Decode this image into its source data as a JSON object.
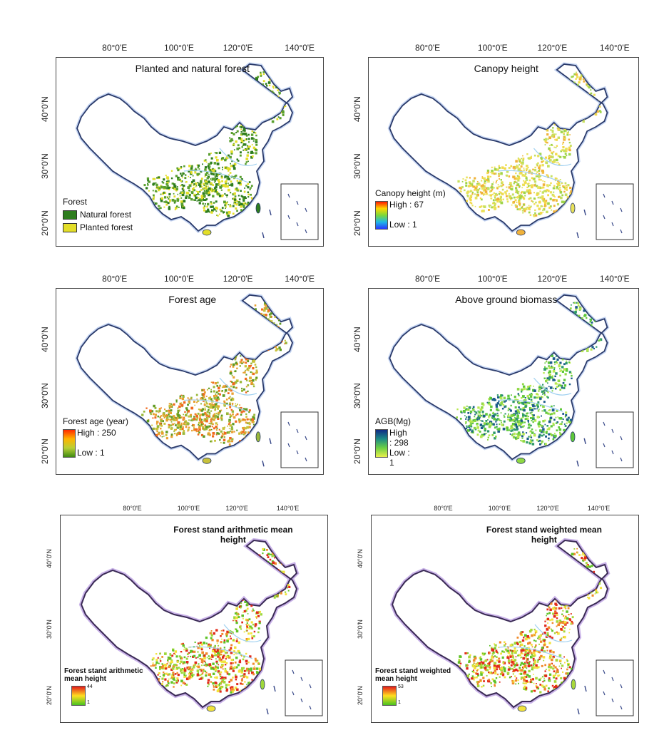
{
  "axes": {
    "lon_ticks": [
      "80°0'E",
      "100°0'E",
      "120°0'E",
      "140°0'E"
    ],
    "lat_ticks": [
      "40°0'N",
      "30°0'N",
      "20°0'N"
    ]
  },
  "panels": [
    {
      "title": "Planted and natural forest",
      "legend": {
        "heading": "Forest",
        "items": [
          {
            "label": "Natural forest",
            "color": "#2e7d1e"
          },
          {
            "label": "Planted forest",
            "color": "#e3de28"
          }
        ]
      }
    },
    {
      "title": "Canopy height",
      "legend": {
        "heading": "Canopy height (m)",
        "high": "High : 67",
        "low": "Low : 1",
        "colors": [
          "#ff1a00",
          "#ffd800",
          "#7bd83a",
          "#1fb8e6",
          "#2838ff"
        ]
      }
    },
    {
      "title": "Forest age",
      "legend": {
        "heading": "Forest age (year)",
        "high": "High : 250",
        "low": "Low : 1",
        "colors": [
          "#ff2a00",
          "#ffb400",
          "#b9d036",
          "#3f8a12"
        ]
      }
    },
    {
      "title": "Above ground biomass",
      "legend": {
        "heading": "AGB(Mg)",
        "high": "High : 298",
        "low": "Low : 1",
        "colors": [
          "#102a86",
          "#1c8a86",
          "#6cd045",
          "#e9f04a"
        ]
      }
    },
    {
      "title": "Forest stand arithmetic mean height",
      "legend": {
        "heading": "Forest stand arithmetic mean height",
        "high": "44",
        "low": "1",
        "colors": [
          "#e31a1c",
          "#ffdf20",
          "#49c320"
        ]
      }
    },
    {
      "title": "Forest stand weighted mean height",
      "legend": {
        "heading": "Forest stand weighted mean height",
        "high": "53",
        "low": "1",
        "colors": [
          "#e31a1c",
          "#ffdf20",
          "#49c320"
        ]
      }
    }
  ]
}
